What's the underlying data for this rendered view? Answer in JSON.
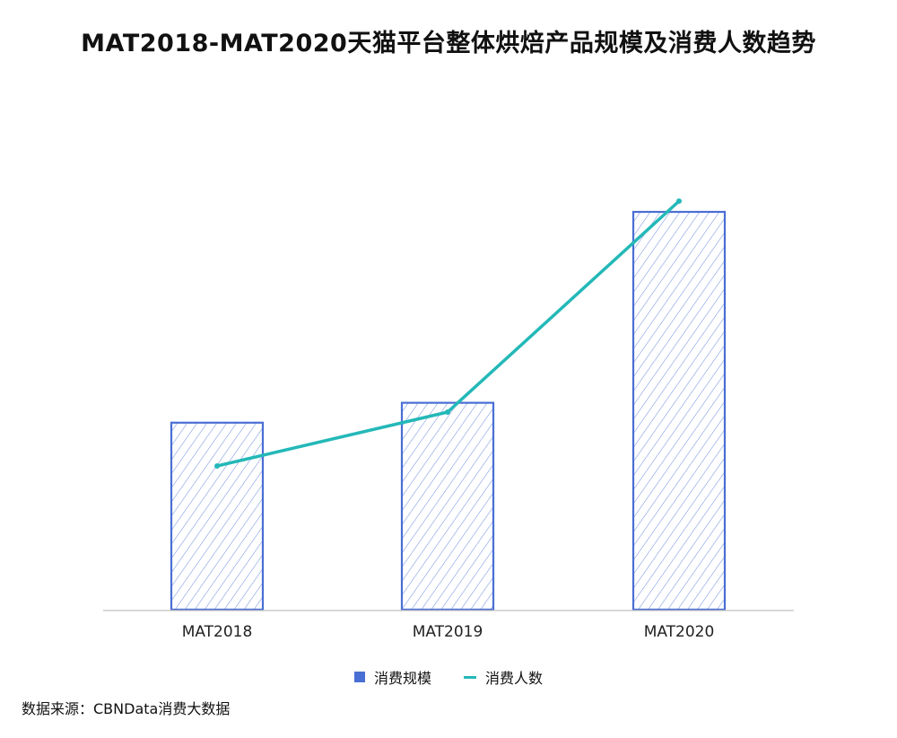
{
  "title": "MAT2018-MAT2020天猫平台整体烘焙产品规模及消费人数趋势",
  "source": "数据来源：CBNData消费大数据",
  "colors": {
    "bar": "#4a6fd4",
    "line": "#24b8b8",
    "axis": "#c0c0c0"
  },
  "chart_data": {
    "type": "bar",
    "categories": [
      "MAT2018",
      "MAT2019",
      "MAT2020"
    ],
    "series": [
      {
        "name": "消费规模",
        "type": "bar",
        "values": [
          0.47,
          0.52,
          1.0
        ]
      },
      {
        "name": "消费人数",
        "type": "line",
        "values": [
          0.36,
          0.5,
          1.0
        ]
      }
    ],
    "legend_position": "bottom-center",
    "grid": false
  }
}
